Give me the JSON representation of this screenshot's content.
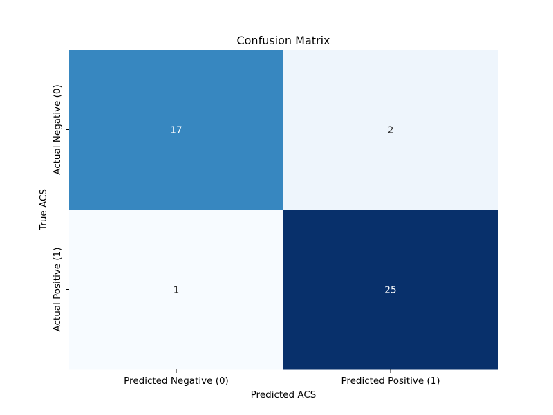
{
  "chart_data": {
    "type": "heatmap",
    "title": "Confusion Matrix",
    "xlabel": "Predicted ACS",
    "ylabel": "True ACS",
    "x_categories": [
      "Predicted Negative (0)",
      "Predicted Positive (1)"
    ],
    "y_categories": [
      "Actual Negative (0)",
      "Actual Positive (1)"
    ],
    "values": [
      [
        17,
        2
      ],
      [
        1,
        25
      ]
    ],
    "colormap": "Blues",
    "color_range": [
      1,
      25
    ],
    "cell_colors": [
      [
        "#3787c0",
        "#eef5fc"
      ],
      [
        "#f7fbff",
        "#08306b"
      ]
    ],
    "annotation_colors": [
      [
        "#ffffff",
        "#262626"
      ],
      [
        "#262626",
        "#ffffff"
      ]
    ],
    "colorbar": false,
    "grid": false
  }
}
